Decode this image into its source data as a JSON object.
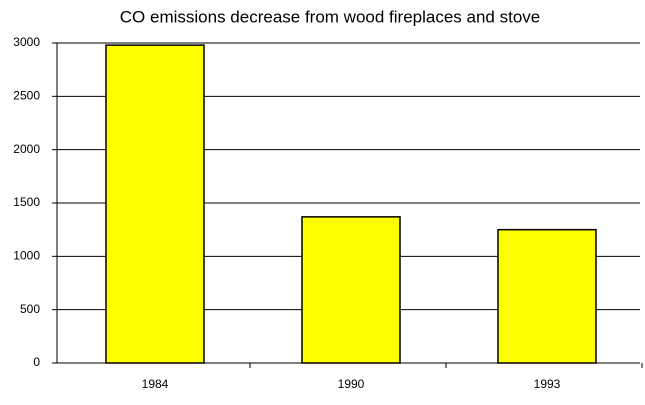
{
  "chart_data": {
    "type": "bar",
    "title": "CO emissions decrease from wood fireplaces and stove",
    "categories": [
      "1984",
      "1990",
      "1993"
    ],
    "values": [
      2980,
      1370,
      1250
    ],
    "color": "#ffff00",
    "ylim": [
      0,
      3000
    ],
    "yticks": [
      0,
      500,
      1000,
      1500,
      2000,
      2500,
      3000
    ],
    "grid": true
  }
}
